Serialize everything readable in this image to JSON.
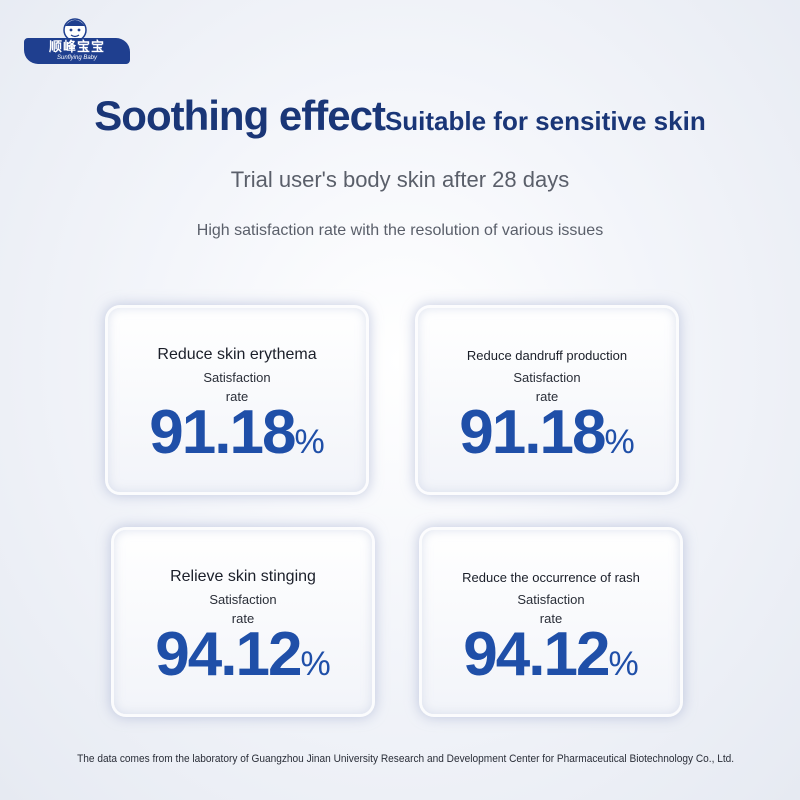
{
  "logo": {
    "text_cn": "顺峰宝宝",
    "text_en": "Sunflying Baby"
  },
  "heading": {
    "main": "Soothing effect",
    "sub": "Suitable for sensitive skin"
  },
  "subtitle": "Trial user's body skin after 28 days",
  "description": "High satisfaction rate with the resolution of various issues",
  "cards": [
    {
      "title": "Reduce skin erythema",
      "label_1": "Satisfaction",
      "label_2": "rate",
      "value": "91.18",
      "unit": "%"
    },
    {
      "title": "Reduce dandruff production",
      "label_1": "Satisfaction",
      "label_2": "rate",
      "value": "91.18",
      "unit": "%"
    },
    {
      "title": "Relieve skin stinging",
      "label_1": "Satisfaction",
      "label_2": "rate",
      "value": "94.12",
      "unit": "%"
    },
    {
      "title": "Reduce the occurrence of rash",
      "label_1": "Satisfaction",
      "label_2": "rate",
      "value": "94.12",
      "unit": "%"
    }
  ],
  "footer": "The data comes from the laboratory of Guangzhou Jinan University Research and Development Center for Pharmaceutical Biotechnology Co., Ltd.",
  "colors": {
    "brand": "#1f3f8f",
    "title": "#1a3677",
    "value": "#1f4fa8"
  }
}
